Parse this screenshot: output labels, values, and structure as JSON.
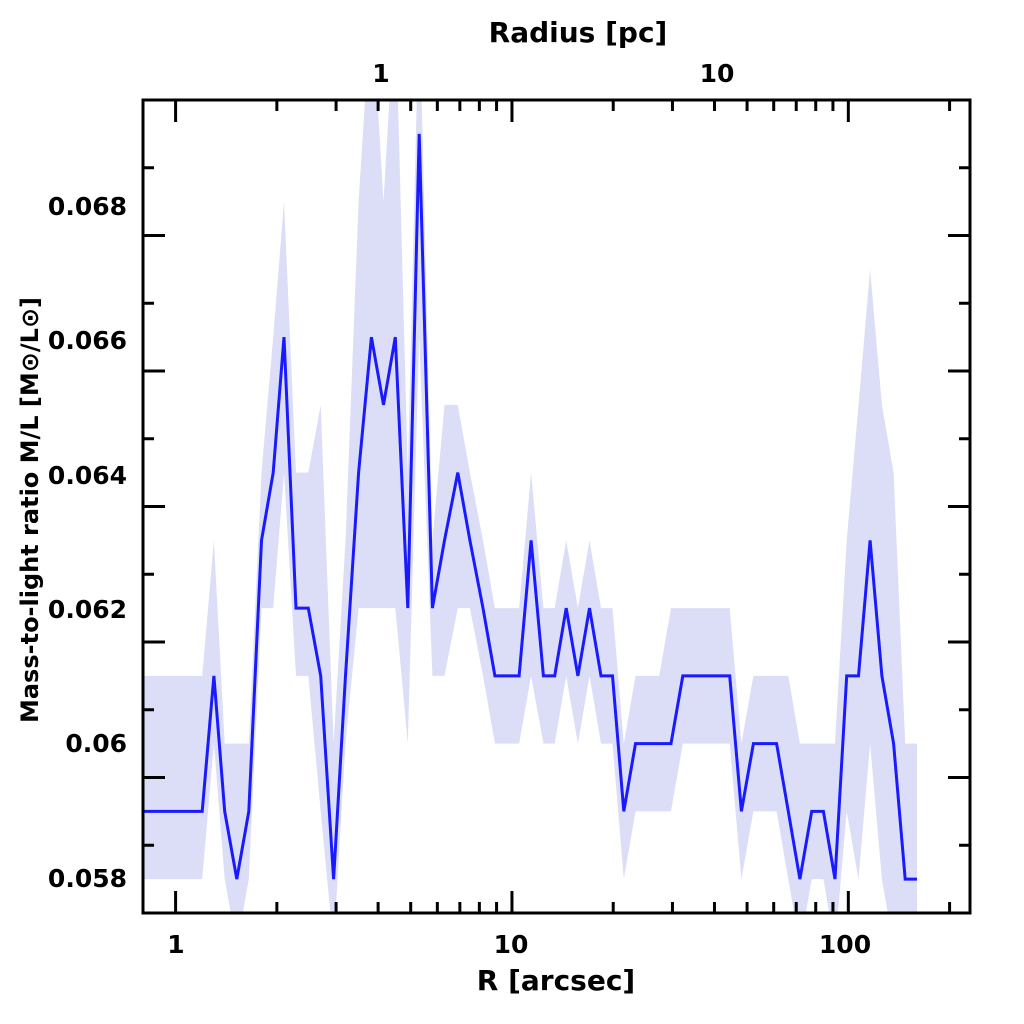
{
  "chart_data": {
    "type": "line",
    "xscale": "log",
    "xlabel": "R [arcsec]",
    "ylabel": "Mass-to-light ratio M/L [M⊙/L⊙]",
    "top_axis_label": "Radius [pc]",
    "xlim": [
      0.8,
      230
    ],
    "ylim": [
      0.0575,
      0.0695
    ],
    "x_ticks": [
      "1",
      "10",
      "100"
    ],
    "y_ticks": [
      "0.058",
      "0.06",
      "0.062",
      "0.064",
      "0.066",
      "0.068"
    ],
    "top_ticks": [
      "1",
      "10"
    ],
    "line_color": "#1a1aff",
    "band_color": "#dcdef8",
    "series": [
      {
        "x": [
          0.8,
          1.2,
          1.3,
          1.4,
          1.52,
          1.65,
          1.8,
          1.95,
          2.1,
          2.28,
          2.48,
          2.7,
          2.95,
          3.2,
          3.5,
          3.82,
          4.15,
          4.5,
          4.9,
          5.3,
          5.8,
          6.3,
          6.9,
          7.5,
          8.2,
          8.9,
          9.7,
          10.5,
          11.4,
          12.4,
          13.4,
          14.5,
          15.7,
          17.0,
          18.4,
          19.9,
          21.5,
          23.3,
          25.3,
          27.4,
          29.7,
          32.2,
          34.9,
          37.8,
          41.0,
          44.4,
          48.1,
          52.2,
          56.5,
          61.2,
          66.3,
          71.8,
          77.8,
          84.3,
          91.3,
          98.9,
          107.2,
          116.1,
          125.8,
          136.3,
          147.6,
          160.0
        ],
        "y": [
          0.059,
          0.059,
          0.061,
          0.059,
          0.058,
          0.059,
          0.063,
          0.064,
          0.066,
          0.062,
          0.062,
          0.061,
          0.058,
          0.061,
          0.064,
          0.066,
          0.065,
          0.066,
          0.062,
          0.069,
          0.062,
          0.063,
          0.064,
          0.063,
          0.062,
          0.061,
          0.061,
          0.061,
          0.063,
          0.061,
          0.061,
          0.062,
          0.061,
          0.062,
          0.061,
          0.061,
          0.059,
          0.06,
          0.06,
          0.06,
          0.06,
          0.061,
          0.061,
          0.061,
          0.061,
          0.061,
          0.059,
          0.06,
          0.06,
          0.06,
          0.059,
          0.058,
          0.059,
          0.059,
          0.058,
          0.061,
          0.061,
          0.063,
          0.061,
          0.06,
          0.058,
          0.058
        ],
        "lower": [
          0.058,
          0.058,
          0.06,
          0.058,
          0.057,
          0.058,
          0.062,
          0.062,
          0.064,
          0.061,
          0.061,
          0.059,
          0.057,
          0.06,
          0.062,
          0.062,
          0.062,
          0.062,
          0.06,
          0.066,
          0.061,
          0.061,
          0.062,
          0.062,
          0.061,
          0.06,
          0.06,
          0.06,
          0.061,
          0.06,
          0.06,
          0.061,
          0.06,
          0.061,
          0.06,
          0.06,
          0.058,
          0.059,
          0.059,
          0.059,
          0.059,
          0.06,
          0.06,
          0.06,
          0.06,
          0.06,
          0.058,
          0.059,
          0.059,
          0.059,
          0.058,
          0.057,
          0.058,
          0.058,
          0.057,
          0.059,
          0.058,
          0.06,
          0.058,
          0.057,
          0.057,
          0.057
        ],
        "upper": [
          0.061,
          0.061,
          0.063,
          0.06,
          0.06,
          0.06,
          0.064,
          0.066,
          0.068,
          0.064,
          0.064,
          0.065,
          0.06,
          0.063,
          0.068,
          0.071,
          0.068,
          0.071,
          0.064,
          0.071,
          0.063,
          0.065,
          0.065,
          0.064,
          0.063,
          0.062,
          0.062,
          0.062,
          0.064,
          0.062,
          0.062,
          0.063,
          0.062,
          0.063,
          0.062,
          0.062,
          0.06,
          0.061,
          0.061,
          0.061,
          0.062,
          0.062,
          0.062,
          0.062,
          0.062,
          0.062,
          0.06,
          0.061,
          0.061,
          0.061,
          0.061,
          0.06,
          0.06,
          0.06,
          0.06,
          0.063,
          0.065,
          0.067,
          0.065,
          0.064,
          0.06,
          0.06
        ]
      }
    ]
  }
}
